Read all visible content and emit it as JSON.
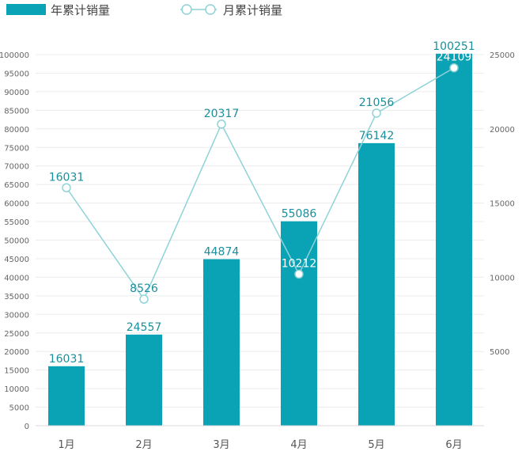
{
  "chart_data": {
    "type": "bar",
    "categories": [
      "1月",
      "2月",
      "3月",
      "4月",
      "5月",
      "6月"
    ],
    "series": [
      {
        "name": "年累计销量",
        "type": "bar",
        "axis": "left",
        "values": [
          16031,
          24557,
          44874,
          55086,
          76142,
          100251
        ]
      },
      {
        "name": "月累计销量",
        "type": "line",
        "axis": "right",
        "values": [
          16031,
          8526,
          20317,
          10212,
          21056,
          24109
        ]
      }
    ],
    "left_axis": {
      "ylim": [
        0,
        100000
      ],
      "ticks": [
        "0",
        "5000",
        "10000",
        "15000",
        "20000",
        "25000",
        "30000",
        "35000",
        "40000",
        "45000",
        "50000",
        "55000",
        "60000",
        "65000",
        "70000",
        "75000",
        "80000",
        "85000",
        "90000",
        "95000",
        "100000"
      ]
    },
    "right_axis": {
      "ylim": [
        0,
        25000
      ],
      "ticks": [
        "5000",
        "10000",
        "15000",
        "20000",
        "25000"
      ]
    },
    "legend_placement": "top-left",
    "grid": true,
    "colors": {
      "bar": "#0aa3b5",
      "line": "#8fd3d7",
      "label": "#1b8f9b"
    }
  }
}
